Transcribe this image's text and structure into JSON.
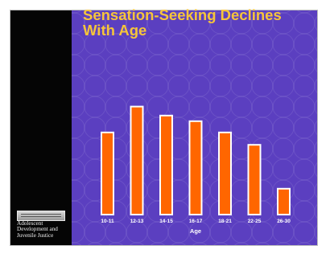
{
  "slide": {
    "title": "Sensation-Seeking Declines With Age",
    "org_name": "Adolescent Development and Juvenile Justice"
  },
  "colors": {
    "background": "#5b3fc0",
    "title": "#f6c53a",
    "bar_fill": "#ff6600",
    "bar_outline": "#ffffff",
    "label": "#ffffff",
    "left_bar": "#050505"
  },
  "chart_data": {
    "type": "bar",
    "title": "Sensation-Seeking Declines With Age",
    "xlabel": "Age",
    "ylabel": "",
    "categories": [
      "10-11",
      "12-13",
      "14-15",
      "16-17",
      "18-21",
      "22-25",
      "26-30"
    ],
    "values": [
      0.73,
      0.96,
      0.88,
      0.83,
      0.73,
      0.62,
      0.23
    ],
    "ylim": [
      0,
      1
    ],
    "grid": false,
    "legend": "none"
  }
}
